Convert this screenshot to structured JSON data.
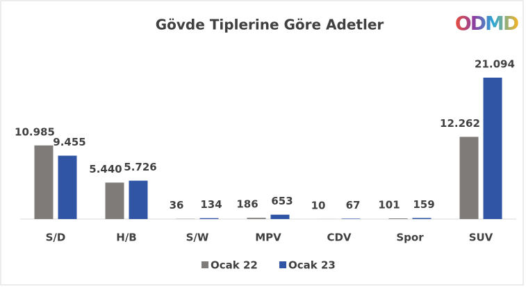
{
  "chart_data": {
    "type": "bar",
    "title": "Gövde Tiplerine Göre Adetler",
    "logo": "ODMD",
    "categories": [
      "S/D",
      "H/B",
      "S/W",
      "MPV",
      "CDV",
      "Spor",
      "SUV"
    ],
    "series": [
      {
        "name": "Ocak 22",
        "color": "#7f7b78",
        "values": [
          10985,
          5440,
          36,
          186,
          10,
          101,
          12262
        ],
        "value_labels": [
          "10.985",
          "5.440",
          "36",
          "186",
          "10",
          "101",
          "12.262"
        ]
      },
      {
        "name": "Ocak 23",
        "color": "#2f55a4",
        "values": [
          9455,
          5726,
          134,
          653,
          67,
          159,
          21094
        ],
        "value_labels": [
          "9.455",
          "5.726",
          "134",
          "653",
          "67",
          "159",
          "21.094"
        ]
      }
    ],
    "legend": "bottom"
  }
}
